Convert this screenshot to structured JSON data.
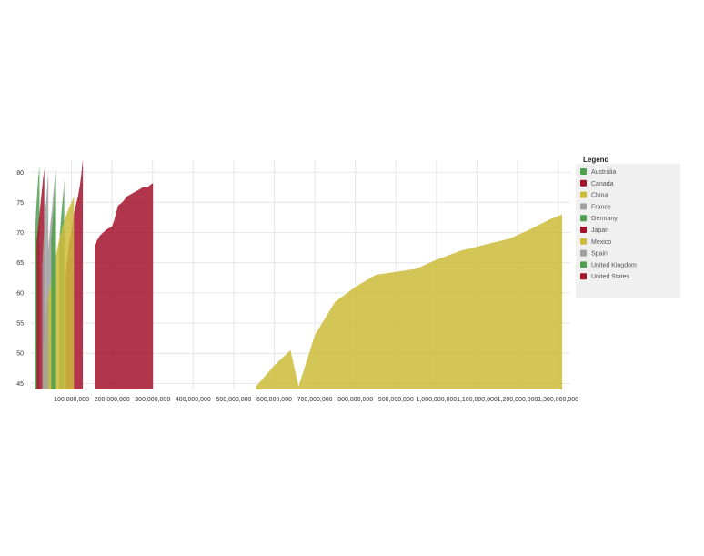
{
  "chart_data": {
    "type": "area",
    "title": "",
    "xlabel": "",
    "ylabel": "",
    "xlim": [
      0,
      1330000000
    ],
    "ylim": [
      44,
      82
    ],
    "x_ticks": [
      100000000,
      200000000,
      300000000,
      400000000,
      500000000,
      600000000,
      700000000,
      800000000,
      900000000,
      1000000000,
      1100000000,
      1200000000,
      1300000000
    ],
    "x_tick_labels": [
      "100,000,000",
      "200,000,000",
      "300,000,000",
      "400,000,000",
      "500,000,000",
      "600,000,000",
      "700,000,000",
      "800,000,000",
      "900,000,000",
      "1,000,000,000",
      "1,100,000,000",
      "1,200,000,000",
      "1,300,000,000"
    ],
    "y_ticks": [
      45,
      50,
      55,
      60,
      65,
      70,
      75,
      80
    ],
    "y_tick_labels": [
      "45",
      "50",
      "55",
      "60",
      "65",
      "70",
      "75",
      "80"
    ],
    "grid": true,
    "legend": {
      "title": "Legend",
      "placement": "right"
    },
    "series": [
      {
        "name": "Australia",
        "color": "#4e9f4e",
        "points": [
          [
            9000000,
            69
          ],
          [
            11000000,
            71
          ],
          [
            13000000,
            74
          ],
          [
            15000000,
            76
          ],
          [
            18000000,
            79
          ],
          [
            21000000,
            81
          ]
        ]
      },
      {
        "name": "Canada",
        "color": "#a3132b",
        "points": [
          [
            14000000,
            68.5
          ],
          [
            18000000,
            71
          ],
          [
            21000000,
            73
          ],
          [
            24000000,
            75
          ],
          [
            27000000,
            77
          ],
          [
            30000000,
            79
          ],
          [
            33000000,
            80.5
          ]
        ]
      },
      {
        "name": "China",
        "color": "#cdbb3a",
        "points": [
          [
            555000000,
            44.5
          ],
          [
            600000000,
            48
          ],
          [
            640000000,
            50.5
          ],
          [
            660000000,
            44.5
          ],
          [
            700000000,
            53
          ],
          [
            750000000,
            58.5
          ],
          [
            800000000,
            61
          ],
          [
            850000000,
            63
          ],
          [
            900000000,
            63.5
          ],
          [
            950000000,
            64
          ],
          [
            1000000000,
            65.5
          ],
          [
            1060000000,
            67
          ],
          [
            1120000000,
            68
          ],
          [
            1180000000,
            69
          ],
          [
            1230000000,
            70.5
          ],
          [
            1280000000,
            72.2
          ],
          [
            1310000000,
            73
          ]
        ]
      },
      {
        "name": "France",
        "color": "#a0a0a0",
        "points": [
          [
            42000000,
            66.5
          ],
          [
            45000000,
            69
          ],
          [
            48000000,
            71.5
          ],
          [
            52000000,
            74
          ],
          [
            55000000,
            76.5
          ],
          [
            58000000,
            78.5
          ],
          [
            61000000,
            80
          ]
        ]
      },
      {
        "name": "Germany",
        "color": "#4e9f4e",
        "points": [
          [
            69000000,
            67.5
          ],
          [
            71000000,
            69.5
          ],
          [
            73000000,
            71
          ],
          [
            75000000,
            73
          ],
          [
            77000000,
            74.5
          ],
          [
            79000000,
            76
          ],
          [
            81000000,
            77.5
          ],
          [
            82000000,
            79
          ]
        ]
      },
      {
        "name": "Japan",
        "color": "#a3132b",
        "points": [
          [
            86000000,
            63
          ],
          [
            93000000,
            67.5
          ],
          [
            100000000,
            70.5
          ],
          [
            107000000,
            73.5
          ],
          [
            116000000,
            76
          ],
          [
            120000000,
            77.5
          ],
          [
            124000000,
            79.5
          ],
          [
            127000000,
            81.5
          ],
          [
            128000000,
            82
          ]
        ]
      },
      {
        "name": "Mexico",
        "color": "#cdbb3a",
        "points": [
          [
            30000000,
            50.5
          ],
          [
            35000000,
            56
          ],
          [
            42000000,
            59
          ],
          [
            50000000,
            62
          ],
          [
            58000000,
            65
          ],
          [
            67000000,
            68
          ],
          [
            76000000,
            70.5
          ],
          [
            85000000,
            72.5
          ],
          [
            93000000,
            74
          ],
          [
            100000000,
            75
          ],
          [
            106000000,
            76
          ]
        ]
      },
      {
        "name": "Spain",
        "color": "#a0a0a0",
        "points": [
          [
            28000000,
            64.5
          ],
          [
            30000000,
            67.5
          ],
          [
            33000000,
            71
          ],
          [
            35000000,
            73.5
          ],
          [
            38000000,
            75.5
          ],
          [
            40000000,
            77.5
          ],
          [
            43000000,
            80
          ]
        ]
      },
      {
        "name": "United Kingdom",
        "color": "#4e9f4e",
        "points": [
          [
            50000000,
            69
          ],
          [
            52000000,
            71
          ],
          [
            54000000,
            72.5
          ],
          [
            56000000,
            74
          ],
          [
            57500000,
            75.5
          ],
          [
            59000000,
            77.5
          ],
          [
            61000000,
            79
          ],
          [
            62000000,
            80.5
          ]
        ]
      },
      {
        "name": "United States",
        "color": "#a3132b",
        "points": [
          [
            157000000,
            68
          ],
          [
            170000000,
            69.5
          ],
          [
            186000000,
            70.5
          ],
          [
            200000000,
            71
          ],
          [
            205000000,
            72
          ],
          [
            215000000,
            74.5
          ],
          [
            225000000,
            75
          ],
          [
            237000000,
            76
          ],
          [
            250000000,
            76.5
          ],
          [
            263000000,
            77
          ],
          [
            276000000,
            77.5
          ],
          [
            288000000,
            77.5
          ],
          [
            296000000,
            78
          ],
          [
            301000000,
            78.2
          ]
        ]
      }
    ]
  }
}
